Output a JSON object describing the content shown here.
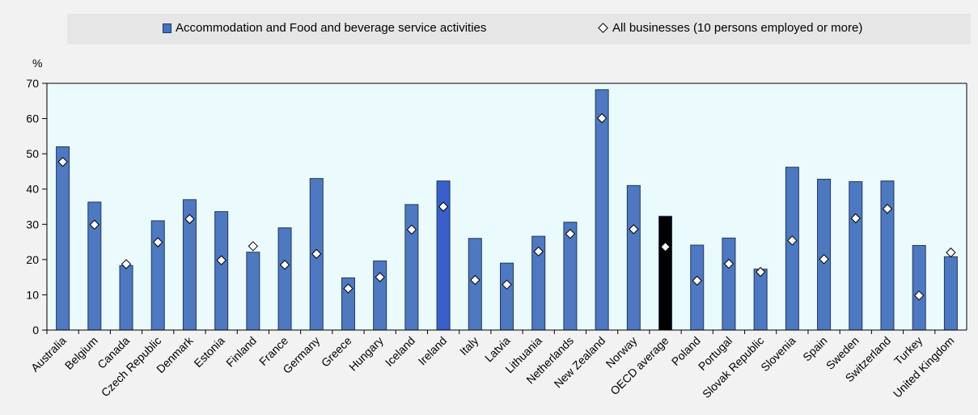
{
  "chart_data": {
    "type": "bar",
    "ylabel": "%",
    "ylim": [
      0,
      70
    ],
    "yticks": [
      "0",
      "10",
      "20",
      "30",
      "40",
      "50",
      "60",
      "70"
    ],
    "categories": [
      "Australia",
      "Belgium",
      "Canada",
      "Czech Republic",
      "Denmark",
      "Estonia",
      "Finland",
      "France",
      "Germany",
      "Greece",
      "Hungary",
      "Iceland",
      "Ireland",
      "Italy",
      "Latvia",
      "Lithuania",
      "Netherlands",
      "New Zealand",
      "Norway",
      "OECD average",
      "Poland",
      "Portugal",
      "Slovak Republic",
      "Slovenia",
      "Spain",
      "Sweden",
      "Switzerland",
      "Turkey",
      "United Kingdom"
    ],
    "series": [
      {
        "name": "Accommodation and Food and beverage service activities",
        "kind": "bar",
        "values": [
          52,
          36.3,
          18.3,
          31,
          37,
          33.6,
          22.1,
          29,
          43,
          14.8,
          19.6,
          35.6,
          42.3,
          26,
          19,
          26.6,
          30.6,
          68.2,
          41,
          32.3,
          24.1,
          26.1,
          17.3,
          46.2,
          42.8,
          42.1,
          42.3,
          24,
          20.8
        ]
      },
      {
        "name": "All businesses (10 persons employed or more)",
        "kind": "marker",
        "values": [
          47.7,
          29.9,
          18.7,
          24.9,
          31.5,
          19.8,
          23.8,
          18.5,
          21.6,
          11.8,
          15,
          28.5,
          35,
          14.2,
          12.9,
          22.3,
          27.3,
          60.1,
          28.6,
          23.6,
          14,
          18.8,
          16.5,
          25.4,
          20.1,
          31.7,
          34.4,
          9.8,
          22
        ]
      }
    ],
    "highlight": {
      "OECD average": "#000000",
      "Ireland": "#3a5fc8"
    },
    "colors": {
      "bar": "#4e78c0",
      "bar_stroke": "#1f3864",
      "plot_bg": "#eafafd",
      "frame_bg": "#f2f2f2",
      "legend_bg": "#e6e6e6"
    },
    "grid": false,
    "legend_position": "top"
  }
}
